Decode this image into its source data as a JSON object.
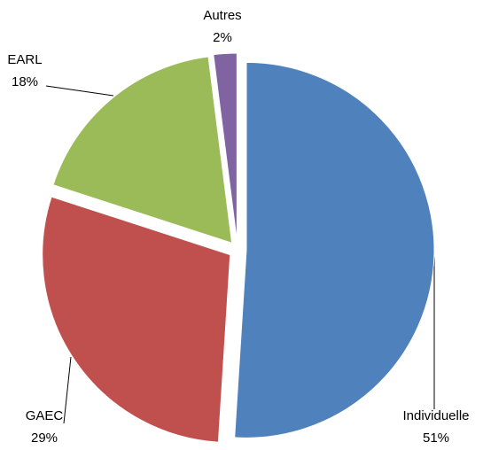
{
  "chart_data": {
    "type": "pie",
    "categories": [
      "Individuelle",
      "GAEC",
      "EARL",
      "Autres"
    ],
    "values": [
      51,
      29,
      18,
      2
    ],
    "value_labels": [
      "51%",
      "29%",
      "18%",
      "2%"
    ],
    "colors": [
      "#4f81bd",
      "#c0504d",
      "#9bbb59",
      "#8064a2"
    ]
  }
}
